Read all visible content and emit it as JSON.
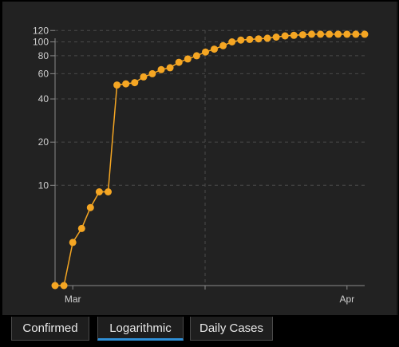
{
  "tabs": [
    {
      "label": "Confirmed",
      "active": false
    },
    {
      "label": "Logarithmic",
      "active": true
    },
    {
      "label": "Daily Cases",
      "active": false
    }
  ],
  "colors": {
    "panel_bg": "#222222",
    "series": "#f5a623",
    "axis": "#8a8a8a",
    "grid": "#4a4a4a",
    "tick_text": "#cfcfcf",
    "tab_active_underline": "#2f8fd6"
  },
  "chart_data": {
    "type": "line",
    "scale": "log",
    "grid": true,
    "ylim": [
      2,
      130
    ],
    "y_ticks": [
      10,
      20,
      40,
      60,
      80,
      100,
      120
    ],
    "x_ticks": [
      {
        "label": "Mar",
        "day": 0
      },
      {
        "label": "Apr",
        "day": 31
      }
    ],
    "x_range": [
      -2,
      33
    ],
    "series": [
      {
        "x": [
          -2,
          -1,
          0,
          1,
          2,
          3,
          4,
          5,
          6,
          7,
          8,
          9,
          10,
          11,
          12,
          13,
          14,
          15,
          16,
          17,
          18,
          19,
          20,
          21,
          22,
          23,
          24,
          25,
          26,
          27,
          28,
          29,
          30,
          31,
          32,
          33
        ],
        "values": [
          2,
          2,
          4,
          5,
          7,
          9,
          9,
          50,
          51,
          52,
          57,
          60,
          64,
          66,
          72,
          76,
          80,
          85,
          89,
          94,
          100,
          103,
          104,
          105,
          106,
          108,
          110,
          111,
          112,
          113,
          113,
          113,
          113,
          113,
          113,
          113
        ]
      }
    ]
  }
}
